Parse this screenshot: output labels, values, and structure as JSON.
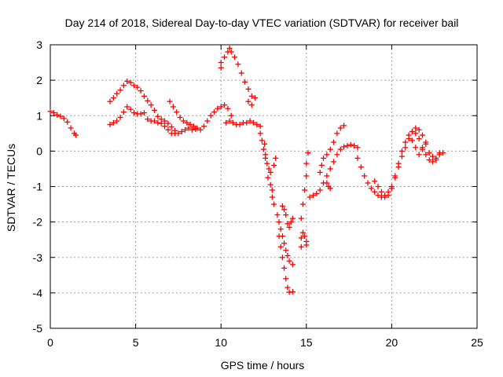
{
  "chart_data": {
    "type": "scatter",
    "title": "Day 214 of 2018, Sidereal Day-to-day VTEC variation (SDTVAR) for receiver bail",
    "xlabel": "GPS time / hours",
    "ylabel": "SDTVAR / TECUs",
    "xlim": [
      0,
      25
    ],
    "ylim": [
      -5,
      3
    ],
    "xticks": [
      "0",
      "5",
      "10",
      "15",
      "20",
      "25"
    ],
    "yticks": [
      "-5",
      "-4",
      "-3",
      "-2",
      "-1",
      "0",
      "1",
      "2",
      "3"
    ],
    "grid": true,
    "marker": "plus",
    "color": "#ff0000",
    "series": [
      {
        "points": [
          [
            0.0,
            1.12
          ],
          [
            0.2,
            1.08
          ],
          [
            0.4,
            1.02
          ],
          [
            0.6,
            0.98
          ],
          [
            0.8,
            0.92
          ],
          [
            1.0,
            0.82
          ],
          [
            1.2,
            0.65
          ],
          [
            1.4,
            0.5
          ],
          [
            1.5,
            0.45
          ],
          [
            3.5,
            1.4
          ],
          [
            3.7,
            1.5
          ],
          [
            3.9,
            1.62
          ],
          [
            4.1,
            1.72
          ],
          [
            4.3,
            1.85
          ],
          [
            4.5,
            1.97
          ],
          [
            4.7,
            1.93
          ],
          [
            4.9,
            1.85
          ],
          [
            5.1,
            1.8
          ],
          [
            5.3,
            1.7
          ],
          [
            5.5,
            1.55
          ],
          [
            5.7,
            1.42
          ],
          [
            5.9,
            1.3
          ],
          [
            6.1,
            1.15
          ],
          [
            6.3,
            0.98
          ],
          [
            6.5,
            0.9
          ],
          [
            6.7,
            0.85
          ],
          [
            6.9,
            0.78
          ],
          [
            7.1,
            0.68
          ],
          [
            7.3,
            0.58
          ],
          [
            3.5,
            0.75
          ],
          [
            3.7,
            0.8
          ],
          [
            3.9,
            0.85
          ],
          [
            4.1,
            0.95
          ],
          [
            4.3,
            1.1
          ],
          [
            4.5,
            1.25
          ],
          [
            4.7,
            1.18
          ],
          [
            4.9,
            1.08
          ],
          [
            5.1,
            1.05
          ],
          [
            5.3,
            1.05
          ],
          [
            5.5,
            1.08
          ],
          [
            5.7,
            0.9
          ],
          [
            5.9,
            0.85
          ],
          [
            6.1,
            0.85
          ],
          [
            6.3,
            0.8
          ],
          [
            6.5,
            0.78
          ],
          [
            6.7,
            0.7
          ],
          [
            6.9,
            0.6
          ],
          [
            7.1,
            0.5
          ],
          [
            7.3,
            0.5
          ],
          [
            7.5,
            0.5
          ],
          [
            7.7,
            0.55
          ],
          [
            7.9,
            0.6
          ],
          [
            8.1,
            0.65
          ],
          [
            8.3,
            0.6
          ],
          [
            8.5,
            0.62
          ],
          [
            7.0,
            1.4
          ],
          [
            7.2,
            1.25
          ],
          [
            7.4,
            1.1
          ],
          [
            7.6,
            0.95
          ],
          [
            7.8,
            0.85
          ],
          [
            8.0,
            0.8
          ],
          [
            8.2,
            0.75
          ],
          [
            8.4,
            0.7
          ],
          [
            8.6,
            0.65
          ],
          [
            8.8,
            0.6
          ],
          [
            9.0,
            0.7
          ],
          [
            9.2,
            0.85
          ],
          [
            9.4,
            1.0
          ],
          [
            9.6,
            1.1
          ],
          [
            9.8,
            1.2
          ],
          [
            10.0,
            1.25
          ],
          [
            10.2,
            1.3
          ],
          [
            10.4,
            1.2
          ],
          [
            10.6,
            1.0
          ],
          [
            10.3,
            0.8
          ],
          [
            10.5,
            0.85
          ],
          [
            10.7,
            0.8
          ],
          [
            10.9,
            0.75
          ],
          [
            11.1,
            0.75
          ],
          [
            11.3,
            0.8
          ],
          [
            11.5,
            0.8
          ],
          [
            11.7,
            0.85
          ],
          [
            11.9,
            0.8
          ],
          [
            12.1,
            0.75
          ],
          [
            12.3,
            0.7
          ],
          [
            10.0,
            2.35
          ],
          [
            10.0,
            2.5
          ],
          [
            10.2,
            2.65
          ],
          [
            10.4,
            2.8
          ],
          [
            10.5,
            2.9
          ],
          [
            10.6,
            2.8
          ],
          [
            10.8,
            2.65
          ],
          [
            11.0,
            2.45
          ],
          [
            11.2,
            2.2
          ],
          [
            11.4,
            1.95
          ],
          [
            11.6,
            1.75
          ],
          [
            11.8,
            1.55
          ],
          [
            12.0,
            1.5
          ],
          [
            11.6,
            1.4
          ],
          [
            11.8,
            1.3
          ],
          [
            12.3,
            0.5
          ],
          [
            12.4,
            0.3
          ],
          [
            12.5,
            0.05
          ],
          [
            12.6,
            -0.2
          ],
          [
            12.7,
            -0.35
          ],
          [
            12.8,
            -0.5
          ],
          [
            12.9,
            -0.6
          ],
          [
            12.75,
            -0.75
          ],
          [
            12.9,
            -0.95
          ],
          [
            13.0,
            -1.1
          ],
          [
            13.0,
            -1.3
          ],
          [
            13.1,
            -1.5
          ],
          [
            13.1,
            -0.4
          ],
          [
            13.2,
            -0.2
          ],
          [
            12.6,
            -0.1
          ],
          [
            12.55,
            0.2
          ],
          [
            13.3,
            -1.8
          ],
          [
            13.4,
            -2.0
          ],
          [
            13.5,
            -2.2
          ],
          [
            13.6,
            -2.4
          ],
          [
            13.7,
            -2.6
          ],
          [
            13.8,
            -2.8
          ],
          [
            13.9,
            -2.95
          ],
          [
            14.0,
            -3.1
          ],
          [
            14.2,
            -3.2
          ],
          [
            13.6,
            -1.55
          ],
          [
            13.7,
            -1.65
          ],
          [
            13.8,
            -1.8
          ],
          [
            13.9,
            -2.05
          ],
          [
            14.0,
            -2.15
          ],
          [
            14.1,
            -2.0
          ],
          [
            14.2,
            -1.9
          ],
          [
            13.4,
            -2.4
          ],
          [
            13.5,
            -2.7
          ],
          [
            13.6,
            -3.0
          ],
          [
            13.7,
            -3.3
          ],
          [
            13.8,
            -3.6
          ],
          [
            13.9,
            -3.85
          ],
          [
            14.0,
            -3.98
          ],
          [
            14.2,
            -3.97
          ],
          [
            14.7,
            -2.7
          ],
          [
            14.7,
            -2.45
          ],
          [
            14.8,
            -2.3
          ],
          [
            14.9,
            -2.4
          ],
          [
            15.0,
            -2.55
          ],
          [
            15.0,
            -2.65
          ],
          [
            14.7,
            -1.9
          ],
          [
            14.8,
            -1.5
          ],
          [
            14.9,
            -1.1
          ],
          [
            15.0,
            -0.7
          ],
          [
            15.0,
            -0.35
          ],
          [
            15.1,
            -0.05
          ],
          [
            15.2,
            -1.3
          ],
          [
            15.4,
            -1.25
          ],
          [
            15.6,
            -1.2
          ],
          [
            15.8,
            -1.1
          ],
          [
            16.0,
            -0.9
          ],
          [
            16.2,
            -0.7
          ],
          [
            16.4,
            -0.5
          ],
          [
            16.6,
            -0.3
          ],
          [
            16.8,
            -0.1
          ],
          [
            17.0,
            0.05
          ],
          [
            17.2,
            0.12
          ],
          [
            17.4,
            0.15
          ],
          [
            17.6,
            0.18
          ],
          [
            17.8,
            0.15
          ],
          [
            18.0,
            0.1
          ],
          [
            15.8,
            -0.6
          ],
          [
            15.9,
            -0.4
          ],
          [
            16.0,
            -0.2
          ],
          [
            16.2,
            -0.1
          ],
          [
            16.4,
            0.05
          ],
          [
            16.6,
            0.25
          ],
          [
            16.8,
            0.5
          ],
          [
            17.0,
            0.65
          ],
          [
            17.2,
            0.72
          ],
          [
            16.2,
            -0.9
          ],
          [
            16.3,
            -1.0
          ],
          [
            16.4,
            -1.05
          ],
          [
            18.0,
            -0.2
          ],
          [
            18.2,
            -0.45
          ],
          [
            18.4,
            -0.7
          ],
          [
            18.6,
            -0.9
          ],
          [
            18.8,
            -1.05
          ],
          [
            19.0,
            -1.15
          ],
          [
            19.2,
            -1.25
          ],
          [
            19.4,
            -1.3
          ],
          [
            19.6,
            -1.25
          ],
          [
            19.8,
            -1.15
          ],
          [
            20.0,
            -1.0
          ],
          [
            20.2,
            -0.75
          ],
          [
            20.4,
            -0.45
          ],
          [
            20.6,
            -0.15
          ],
          [
            20.8,
            0.1
          ],
          [
            21.0,
            0.35
          ],
          [
            21.2,
            0.55
          ],
          [
            21.4,
            0.65
          ],
          [
            21.6,
            0.6
          ],
          [
            21.8,
            0.45
          ],
          [
            22.0,
            0.2
          ],
          [
            22.2,
            -0.05
          ],
          [
            22.4,
            -0.15
          ],
          [
            22.6,
            -0.2
          ],
          [
            22.8,
            -0.1
          ],
          [
            19.0,
            -0.85
          ],
          [
            19.2,
            -1.0
          ],
          [
            19.4,
            -1.15
          ],
          [
            19.6,
            -1.3
          ],
          [
            19.8,
            -1.25
          ],
          [
            20.0,
            -1.05
          ],
          [
            20.2,
            -0.7
          ],
          [
            20.4,
            -0.35
          ],
          [
            20.6,
            0.0
          ],
          [
            20.8,
            0.25
          ],
          [
            21.0,
            0.45
          ],
          [
            21.2,
            0.55
          ],
          [
            21.4,
            0.5
          ],
          [
            21.6,
            0.35
          ],
          [
            21.8,
            0.1
          ],
          [
            22.0,
            -0.1
          ],
          [
            22.2,
            -0.25
          ],
          [
            22.4,
            -0.3
          ],
          [
            22.6,
            -0.25
          ],
          [
            22.8,
            -0.05
          ],
          [
            23.0,
            -0.05
          ],
          [
            21.2,
            0.3
          ],
          [
            21.4,
            0.1
          ],
          [
            21.6,
            -0.1
          ],
          [
            21.8,
            0.05
          ],
          [
            22.0,
            0.25
          ]
        ]
      }
    ]
  }
}
